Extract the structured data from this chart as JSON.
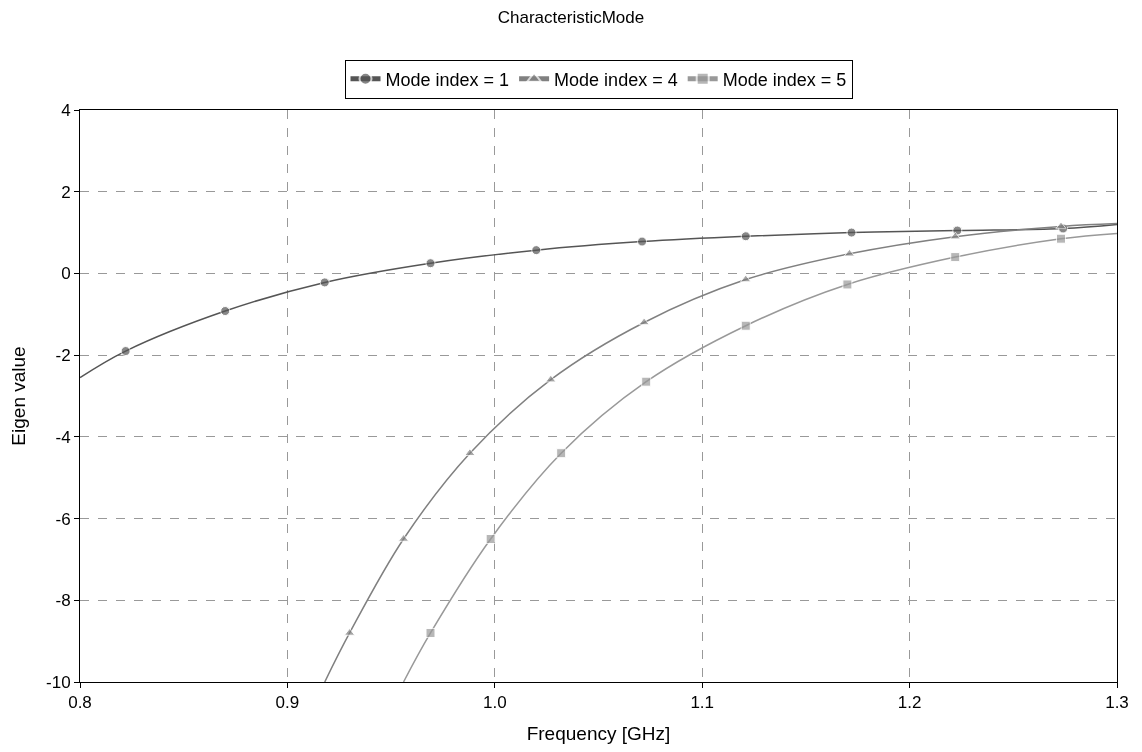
{
  "chart_data": {
    "type": "line",
    "title": "CharacteristicMode",
    "xlabel": "Frequency [GHz]",
    "ylabel": "Eigen value",
    "xlim": [
      0.8,
      1.3
    ],
    "xticks": [
      {
        "value": 0.8,
        "label": "0.8"
      },
      {
        "value": 0.9,
        "label": "0.9"
      },
      {
        "value": 1.0,
        "label": "1.0"
      },
      {
        "value": 1.1,
        "label": "1.1"
      },
      {
        "value": 1.2,
        "label": "1.2"
      },
      {
        "value": 1.3,
        "label": "1.3"
      }
    ],
    "ylim": [
      -10,
      4
    ],
    "yticks": [
      -10,
      -8,
      -6,
      -4,
      -2,
      0,
      2,
      4
    ],
    "grid": true,
    "legend": "top",
    "line_style": "solid",
    "series": [
      {
        "name": "Mode index = 1",
        "color": "#555555",
        "marker": "circle",
        "x": [
          0.8,
          0.822,
          0.87,
          0.918,
          0.969,
          1.02,
          1.071,
          1.121,
          1.172,
          1.223,
          1.274,
          1.3
        ],
        "values": [
          -2.55,
          -1.9,
          -0.92,
          -0.22,
          0.25,
          0.57,
          0.78,
          0.91,
          1.0,
          1.05,
          1.1,
          1.2
        ]
      },
      {
        "name": "Mode index = 4",
        "color": "#808080",
        "marker": "triangle",
        "x": [
          0.918,
          0.93,
          0.956,
          0.988,
          1.027,
          1.072,
          1.121,
          1.171,
          1.222,
          1.273,
          1.3
        ],
        "values": [
          -10,
          -8.8,
          -6.5,
          -4.4,
          -2.6,
          -1.2,
          -0.15,
          0.48,
          0.9,
          1.15,
          1.22
        ]
      },
      {
        "name": "Mode index = 5",
        "color": "#999999",
        "marker": "square",
        "x": [
          0.956,
          0.969,
          0.998,
          1.032,
          1.073,
          1.121,
          1.17,
          1.222,
          1.273,
          1.3
        ],
        "values": [
          -10,
          -8.8,
          -6.5,
          -4.4,
          -2.65,
          -1.28,
          -0.27,
          0.4,
          0.85,
          0.98
        ]
      }
    ]
  }
}
